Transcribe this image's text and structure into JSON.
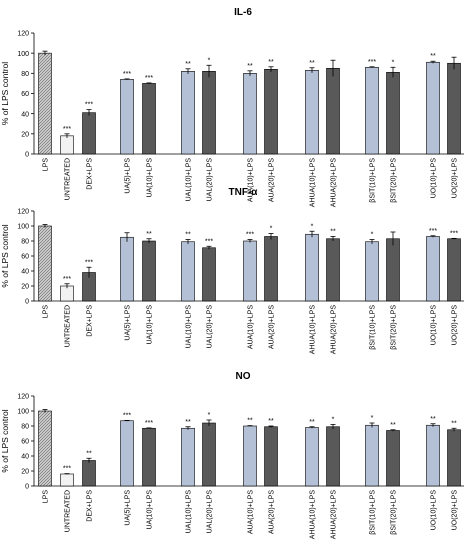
{
  "colors": {
    "lps": "#c8c8c8",
    "lps_hatch": "#8a8a8a",
    "untreated": "#f2f2f2",
    "dex": "#595959",
    "light_series": "#b4c0d6",
    "dark_series": "#595959",
    "axis": "#000000"
  },
  "chart_data": [
    {
      "type": "bar",
      "title": "IL-6",
      "ylabel": "% of LPS control",
      "ylim": [
        0,
        120
      ],
      "yticks": [
        0,
        20,
        40,
        60,
        80,
        100,
        120
      ],
      "grid": false,
      "categories": [
        "LPS",
        "UNTREATED",
        "DEX+LPS",
        "UA(5)+LPS",
        "UA(10)+LPS",
        "UAL(10)+LPS",
        "UAL(20)+LPS",
        "AUA(10)+LPS",
        "AUA(20)+LPS",
        "AHUA(10)+LPS",
        "AHUA(20)+LPS",
        "βSIT(10)+LPS",
        "βSIT(20)+LPS",
        "UO(10)+LPS",
        "UO(20)+LPS"
      ],
      "values": [
        100,
        18,
        41,
        74,
        70,
        82,
        82,
        80,
        84,
        83,
        85,
        86,
        81,
        91,
        90
      ],
      "errors": [
        2,
        2,
        3,
        0.5,
        0.5,
        2.5,
        6,
        2.5,
        2.5,
        2.5,
        8,
        0.5,
        5,
        1,
        6
      ],
      "significance": [
        "",
        "***",
        "***",
        "***",
        "***",
        "**",
        "*",
        "**",
        "**",
        "**",
        "",
        "***",
        "*",
        "**",
        ""
      ]
    },
    {
      "type": "bar",
      "title": "TNF-α",
      "ylabel": "% of LPS control",
      "ylim": [
        0,
        120
      ],
      "yticks": [
        0,
        20,
        40,
        60,
        80,
        100,
        120
      ],
      "grid": false,
      "categories": [
        "LPS",
        "UNTREATED",
        "DEX+LPS",
        "UA(5)+LPS",
        "UA(10)+LPS",
        "UAL(10)+LPS",
        "UAL(20)+LPS",
        "AUA(10)+LPS",
        "AUA(20)+LPS",
        "AHUA(10)+LPS",
        "AHUA(20)+LPS",
        "βSIT(10)+LPS",
        "βSIT(20)+LPS",
        "UO(10)+LPS",
        "UO(20)+LPS"
      ],
      "values": [
        100,
        20,
        38,
        85,
        80,
        79,
        71,
        80,
        86,
        89,
        83,
        79,
        83,
        86,
        83
      ],
      "errors": [
        2,
        3,
        7,
        6,
        3,
        3,
        2,
        2,
        4,
        4,
        3,
        3,
        9,
        1,
        0.5
      ],
      "significance": [
        "",
        "***",
        "***",
        "",
        "**",
        "**",
        "***",
        "***",
        "*",
        "*",
        "**",
        "*",
        "",
        "***",
        "***"
      ]
    },
    {
      "type": "bar",
      "title": "NO",
      "ylabel": "% of LPS control",
      "ylim": [
        0,
        120
      ],
      "yticks": [
        0,
        20,
        40,
        60,
        80,
        100,
        120
      ],
      "grid": false,
      "categories": [
        "LPS",
        "UNTREATED",
        "DEX+LPS",
        "UA(5)+LPS",
        "UA(10)+LPS",
        "UAL(10)+LPS",
        "UAL(20)+LPS",
        "AUA(10)+LPS",
        "AUA(20)+LPS",
        "AHUA(10)+LPS",
        "AHUA(20)+LPS",
        "βSIT(10)+LPS",
        "βSIT(20)+LPS",
        "UO(10)+LPS",
        "UO(20)+LPS"
      ],
      "values": [
        100,
        16,
        34,
        87,
        77,
        77,
        84,
        80,
        79,
        78,
        79,
        81,
        74,
        81,
        75
      ],
      "errors": [
        2,
        0.5,
        3,
        0.5,
        0.5,
        2,
        4,
        0.5,
        1,
        1,
        3,
        3,
        1,
        2,
        2
      ],
      "significance": [
        "",
        "***",
        "**",
        "***",
        "***",
        "**",
        "*",
        "**",
        "**",
        "**",
        "*",
        "*",
        "**",
        "**",
        "**"
      ]
    }
  ]
}
